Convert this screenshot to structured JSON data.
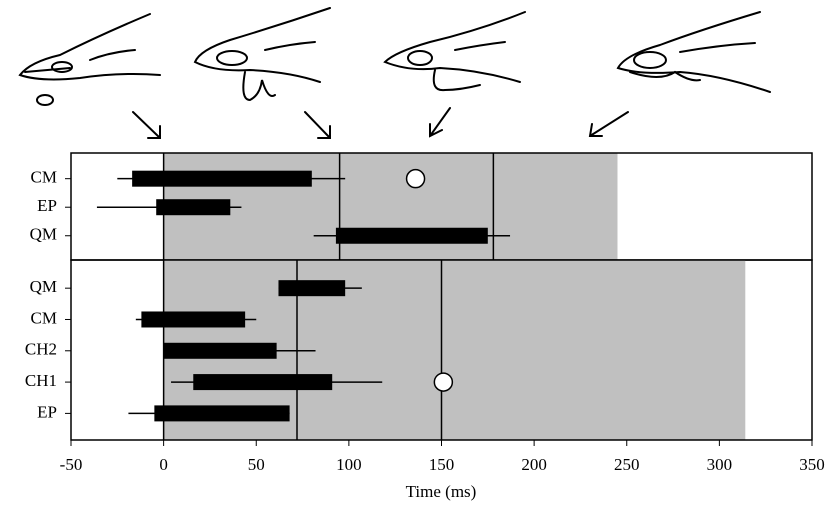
{
  "chart_data": {
    "type": "range-bar",
    "xlabel": "Time (ms)",
    "xlim": [
      -50,
      350
    ],
    "xticks": [
      -50,
      0,
      50,
      100,
      150,
      200,
      250,
      300,
      350
    ],
    "shade_color": "#c0c0c0",
    "bar_color": "#000000",
    "panels": [
      {
        "categories": [
          "CM",
          "EP",
          "QM"
        ],
        "bars": [
          {
            "start": -17,
            "end": 80,
            "low": -25,
            "high": 98
          },
          {
            "start": -4,
            "end": 36,
            "low": -36,
            "high": 42
          },
          {
            "start": 93,
            "end": 175,
            "low": 81,
            "high": 187
          }
        ],
        "shade": [
          0,
          245
        ],
        "vlines": [
          95,
          178
        ],
        "markers": [
          {
            "category": "CM",
            "value": 136
          }
        ]
      },
      {
        "categories": [
          "QM",
          "CM",
          "CH2",
          "CH1",
          "EP"
        ],
        "bars": [
          {
            "start": 62,
            "end": 98,
            "low": 62,
            "high": 107
          },
          {
            "start": -12,
            "end": 44,
            "low": -15,
            "high": 50
          },
          {
            "start": 0,
            "end": 61,
            "low": 0,
            "high": 82
          },
          {
            "start": 16,
            "end": 91,
            "low": 4,
            "high": 118
          },
          {
            "start": -5,
            "end": 68,
            "low": -19,
            "high": 68
          }
        ],
        "shade": [
          0,
          314
        ],
        "vlines": [
          72,
          150
        ],
        "markers": [
          {
            "category": "CH1",
            "value": 151
          }
        ]
      }
    ]
  }
}
